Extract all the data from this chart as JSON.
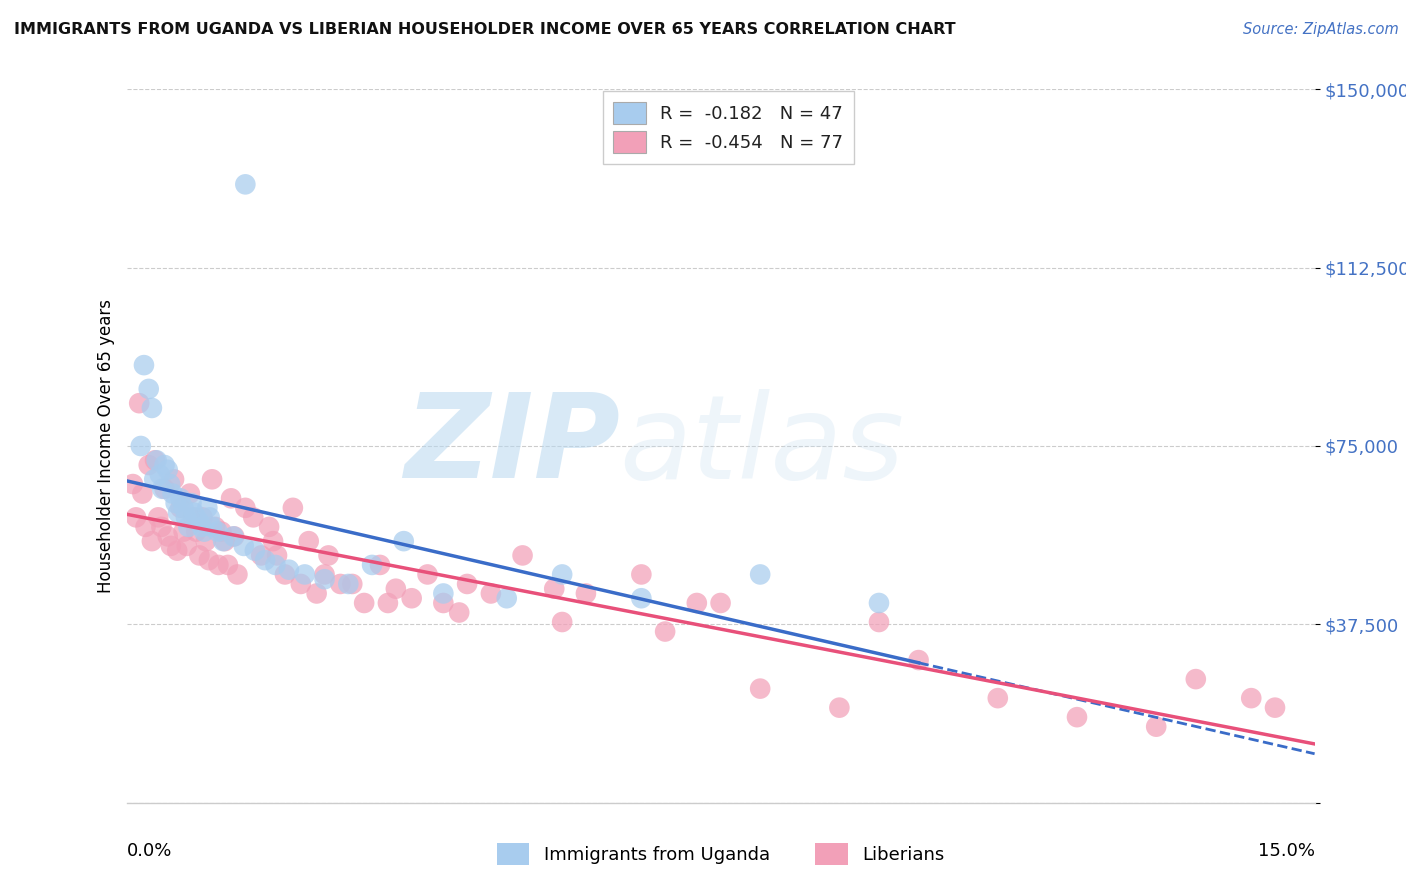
{
  "title": "IMMIGRANTS FROM UGANDA VS LIBERIAN HOUSEHOLDER INCOME OVER 65 YEARS CORRELATION CHART",
  "source": "Source: ZipAtlas.com",
  "ylabel": "Householder Income Over 65 years",
  "xmin": 0.0,
  "xmax": 15.0,
  "ymin": 0,
  "ymax": 150000,
  "yticks": [
    0,
    37500,
    75000,
    112500,
    150000
  ],
  "ytick_labels": [
    "",
    "$37,500",
    "$75,000",
    "$112,500",
    "$150,000"
  ],
  "r_uganda": "-0.182",
  "n_uganda": "47",
  "r_liberian": "-0.454",
  "n_liberian": "77",
  "color_uganda": "#A8CCEE",
  "color_liberian": "#F2A0B8",
  "color_uganda_line": "#3A6CC8",
  "color_liberian_line": "#E8507A",
  "color_ytick": "#4472C4",
  "watermark_zip": "ZIP",
  "watermark_atlas": "atlas",
  "uganda_x": [
    0.18,
    0.22,
    0.28,
    0.32,
    0.35,
    0.38,
    0.42,
    0.45,
    0.48,
    0.52,
    0.55,
    0.58,
    0.62,
    0.65,
    0.68,
    0.72,
    0.75,
    0.78,
    0.82,
    0.85,
    0.88,
    0.92,
    0.95,
    0.98,
    1.02,
    1.05,
    1.08,
    1.15,
    1.22,
    1.35,
    1.48,
    1.62,
    1.75,
    1.88,
    2.05,
    2.25,
    2.5,
    2.8,
    3.1,
    3.5,
    4.0,
    4.8,
    5.5,
    6.5,
    8.0,
    9.5,
    1.5
  ],
  "uganda_y": [
    75000,
    92000,
    87000,
    83000,
    68000,
    72000,
    69000,
    66000,
    71000,
    70000,
    67000,
    65000,
    63000,
    61000,
    64000,
    62000,
    60000,
    58000,
    63000,
    61000,
    60000,
    59000,
    58000,
    57000,
    62000,
    60000,
    58000,
    57000,
    55000,
    56000,
    54000,
    53000,
    51000,
    50000,
    49000,
    48000,
    47000,
    46000,
    50000,
    55000,
    44000,
    43000,
    48000,
    43000,
    48000,
    42000,
    130000
  ],
  "liberian_x": [
    0.08,
    0.12,
    0.16,
    0.2,
    0.24,
    0.28,
    0.32,
    0.36,
    0.4,
    0.44,
    0.48,
    0.52,
    0.56,
    0.6,
    0.64,
    0.68,
    0.72,
    0.76,
    0.8,
    0.84,
    0.88,
    0.92,
    0.96,
    1.0,
    1.04,
    1.08,
    1.12,
    1.16,
    1.2,
    1.24,
    1.28,
    1.32,
    1.36,
    1.4,
    1.5,
    1.6,
    1.7,
    1.8,
    1.9,
    2.0,
    2.1,
    2.2,
    2.3,
    2.4,
    2.55,
    2.7,
    2.85,
    3.0,
    3.2,
    3.4,
    3.6,
    3.8,
    4.0,
    4.3,
    4.6,
    5.0,
    5.4,
    5.8,
    6.5,
    7.2,
    8.0,
    9.0,
    10.0,
    11.0,
    12.0,
    13.5,
    14.2,
    14.5,
    1.85,
    2.5,
    3.3,
    4.2,
    5.5,
    6.8,
    7.5,
    9.5,
    13.0
  ],
  "liberian_y": [
    67000,
    60000,
    84000,
    65000,
    58000,
    71000,
    55000,
    72000,
    60000,
    58000,
    66000,
    56000,
    54000,
    68000,
    53000,
    62000,
    57000,
    54000,
    65000,
    60000,
    57000,
    52000,
    60000,
    55000,
    51000,
    68000,
    58000,
    50000,
    57000,
    55000,
    50000,
    64000,
    56000,
    48000,
    62000,
    60000,
    52000,
    58000,
    52000,
    48000,
    62000,
    46000,
    55000,
    44000,
    52000,
    46000,
    46000,
    42000,
    50000,
    45000,
    43000,
    48000,
    42000,
    46000,
    44000,
    52000,
    45000,
    44000,
    48000,
    42000,
    24000,
    20000,
    30000,
    22000,
    18000,
    26000,
    22000,
    20000,
    55000,
    48000,
    42000,
    40000,
    38000,
    36000,
    42000,
    38000,
    16000
  ]
}
